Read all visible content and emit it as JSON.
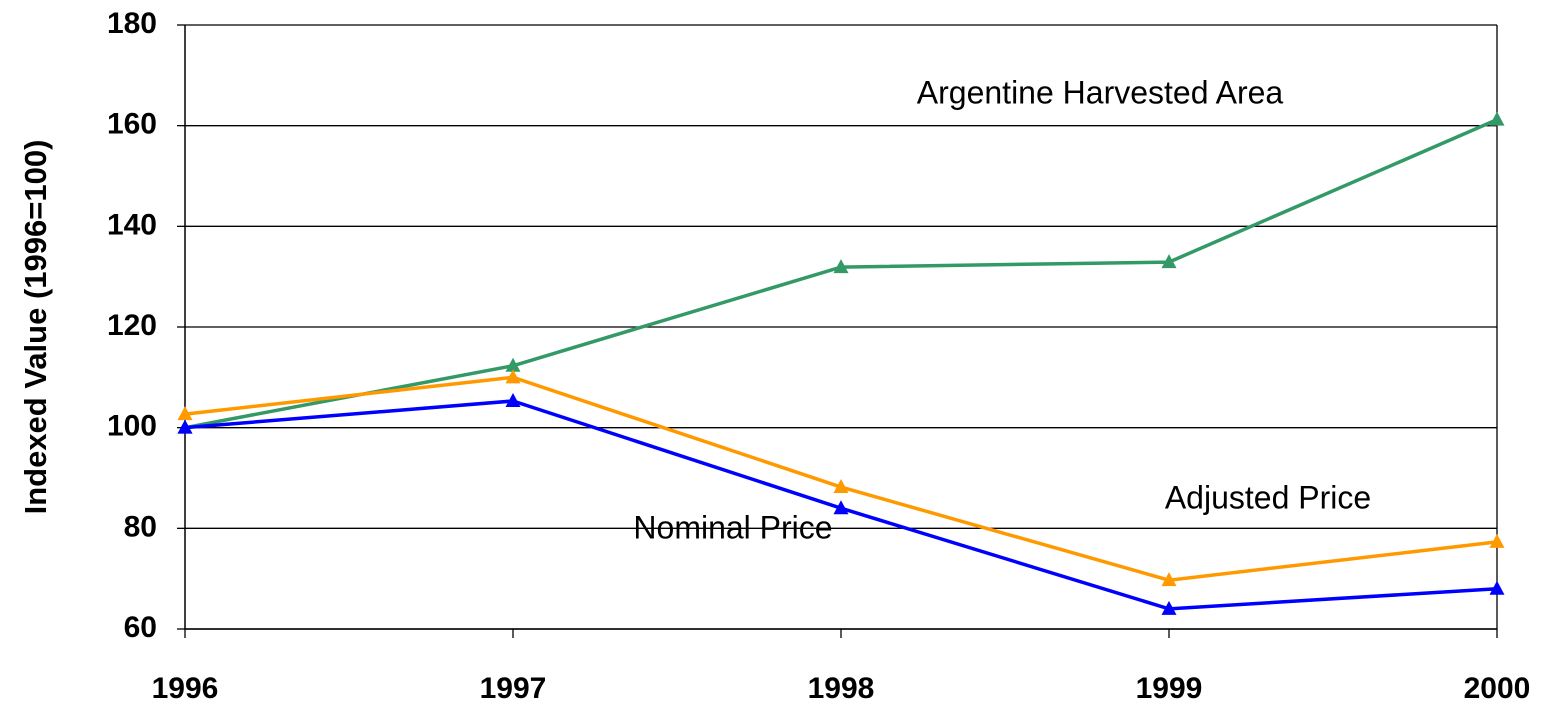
{
  "chart_data": {
    "type": "line",
    "y_label": "Indexed Value (1996=100)",
    "categories": [
      "1996",
      "1997",
      "1998",
      "1999",
      "2000"
    ],
    "series": [
      {
        "name": "Argentine Harvested Area",
        "color": "#339966",
        "values": [
          100,
          112.3,
          131.9,
          132.9,
          161.2
        ]
      },
      {
        "name": "Adjusted Price",
        "color": "#ff9900",
        "values": [
          102.7,
          110,
          88.2,
          69.7,
          77.3
        ]
      },
      {
        "name": "Nominal Price",
        "color": "#0000ff",
        "values": [
          100,
          105.3,
          84,
          64,
          68
        ]
      }
    ],
    "ylim": [
      60,
      180
    ],
    "yticks": [
      60,
      80,
      100,
      120,
      140,
      160,
      180
    ],
    "grid": true
  }
}
